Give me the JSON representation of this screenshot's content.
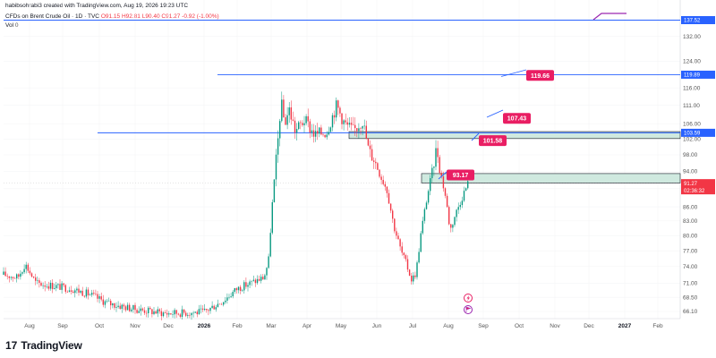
{
  "header": {
    "author_line": "habibsohrabi3 created with TradingView.com, Aug 19, 2026 19:23 UTC",
    "symbol_line": "CFDs on Brent Crude Oil · 1D · TVC",
    "ohlc": "O91.15 H92.81 L90.40 C91.27 -0.92 (-1.00%)",
    "vol_label": "Vol",
    "vol_value": "0"
  },
  "footer": {
    "logo": "17",
    "brand": "TradingView"
  },
  "colors": {
    "up": "#089981",
    "down": "#f23645",
    "line": "#2962ff",
    "zone": "#cfe9df",
    "badge": "#e91e63"
  },
  "icons": [
    "tradingview-logo-icon",
    "lightning-icon",
    "flag-icon",
    "arrow-icon"
  ],
  "chart_data": {
    "type": "candlestick",
    "ylim": [
      65.0,
      141.0
    ],
    "y_scale": "log",
    "y_ticks": [
      "66.10",
      "68.50",
      "71.00",
      "74.00",
      "77.00",
      "80.00",
      "83.00",
      "86.00",
      "90.00",
      "94.00",
      "98.00",
      "102.00",
      "106.00",
      "111.00",
      "116.00",
      "124.00",
      "132.00"
    ],
    "x_ticks": [
      "Aug",
      "Sep",
      "Oct",
      "Nov",
      "Dec",
      "2026",
      "Feb",
      "Mar",
      "Apr",
      "May",
      "Jun",
      "Jul",
      "Aug",
      "Sep",
      "Oct",
      "Nov",
      "Dec",
      "2027",
      "Feb"
    ],
    "x_ticks_bold": [
      "2026",
      "2027"
    ],
    "price_tags": [
      {
        "value": 137.52,
        "label": "137.52"
      },
      {
        "value": 119.89,
        "label": "119.89"
      },
      {
        "value": 103.59,
        "label": "103.59"
      },
      {
        "value": 91.27,
        "label": "91.27",
        "sub": "02:36:32"
      }
    ],
    "levels": [
      {
        "value": 137.52
      },
      {
        "value": 119.89
      },
      {
        "value": 103.59
      }
    ],
    "zones": [
      {
        "from": 102.1,
        "to": 103.9
      },
      {
        "from": 91.3,
        "to": 93.5
      }
    ],
    "targets": [
      {
        "label": "119.66",
        "value": 119.66
      },
      {
        "label": "107.43",
        "value": 107.43
      },
      {
        "label": "101.58",
        "value": 101.58
      },
      {
        "label": "93.17",
        "value": 93.17
      }
    ],
    "last_price": 91.27,
    "candles_summary": [
      {
        "period": "Aug",
        "close": 75
      },
      {
        "period": "Sep",
        "close": 72
      },
      {
        "period": "Oct",
        "close": 70
      },
      {
        "period": "Nov",
        "close": 66
      },
      {
        "period": "Dec",
        "close": 64
      },
      {
        "period": "2026",
        "close": 63
      },
      {
        "period": "Feb",
        "close": 74
      },
      {
        "period": "Mar",
        "close": 112
      },
      {
        "period": "Apr",
        "close": 104
      },
      {
        "period": "May",
        "close": 104
      },
      {
        "period": "Jun",
        "close": 88
      },
      {
        "period": "Jul",
        "close": 72
      },
      {
        "period": "Aug",
        "close": 91.27
      }
    ]
  }
}
